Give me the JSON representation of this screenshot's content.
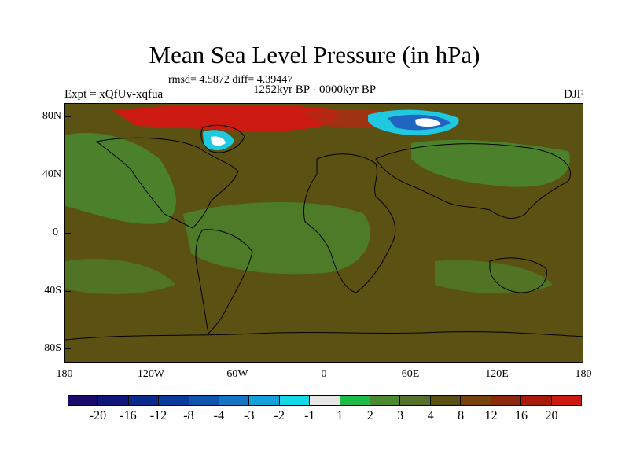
{
  "title": "Mean Sea Level Pressure (in hPa)",
  "stats": "rmsd= 4.5872 diff= 4.39447",
  "period": "1252kyr BP - 0000kyr BP",
  "experiment": "Expt = xQfUv-xqfua",
  "season": "DJF",
  "map": {
    "y_axis_labels": [
      "80N",
      "40N",
      "0",
      "40S",
      "80S"
    ],
    "x_axis_labels": [
      "180",
      "120W",
      "60W",
      "0",
      "60E",
      "120E",
      "180"
    ],
    "background_color": "#5a5112",
    "anomaly_colors": {
      "green": "#4a8a30",
      "dark_green": "#55701f",
      "red": "#cc1a10",
      "light_blue": "#20c8e0",
      "blue": "#2066c0",
      "white": "#ffffff"
    }
  },
  "colorbar": {
    "colors": [
      "#1a0a6a",
      "#10177a",
      "#0a2a8c",
      "#0a3c9c",
      "#0f55b0",
      "#1373c4",
      "#14a0d8",
      "#14d8e8",
      "#e6e6e6",
      "#1cba46",
      "#4a8a30",
      "#557028",
      "#5a5112",
      "#78420e",
      "#8a2a0a",
      "#a81a0a",
      "#cc1a10"
    ],
    "labels": [
      "-20",
      "-16",
      "-12",
      "-8",
      "-4",
      "-3",
      "-2",
      "-1",
      "1",
      "2",
      "3",
      "4",
      "8",
      "12",
      "16",
      "20"
    ]
  }
}
